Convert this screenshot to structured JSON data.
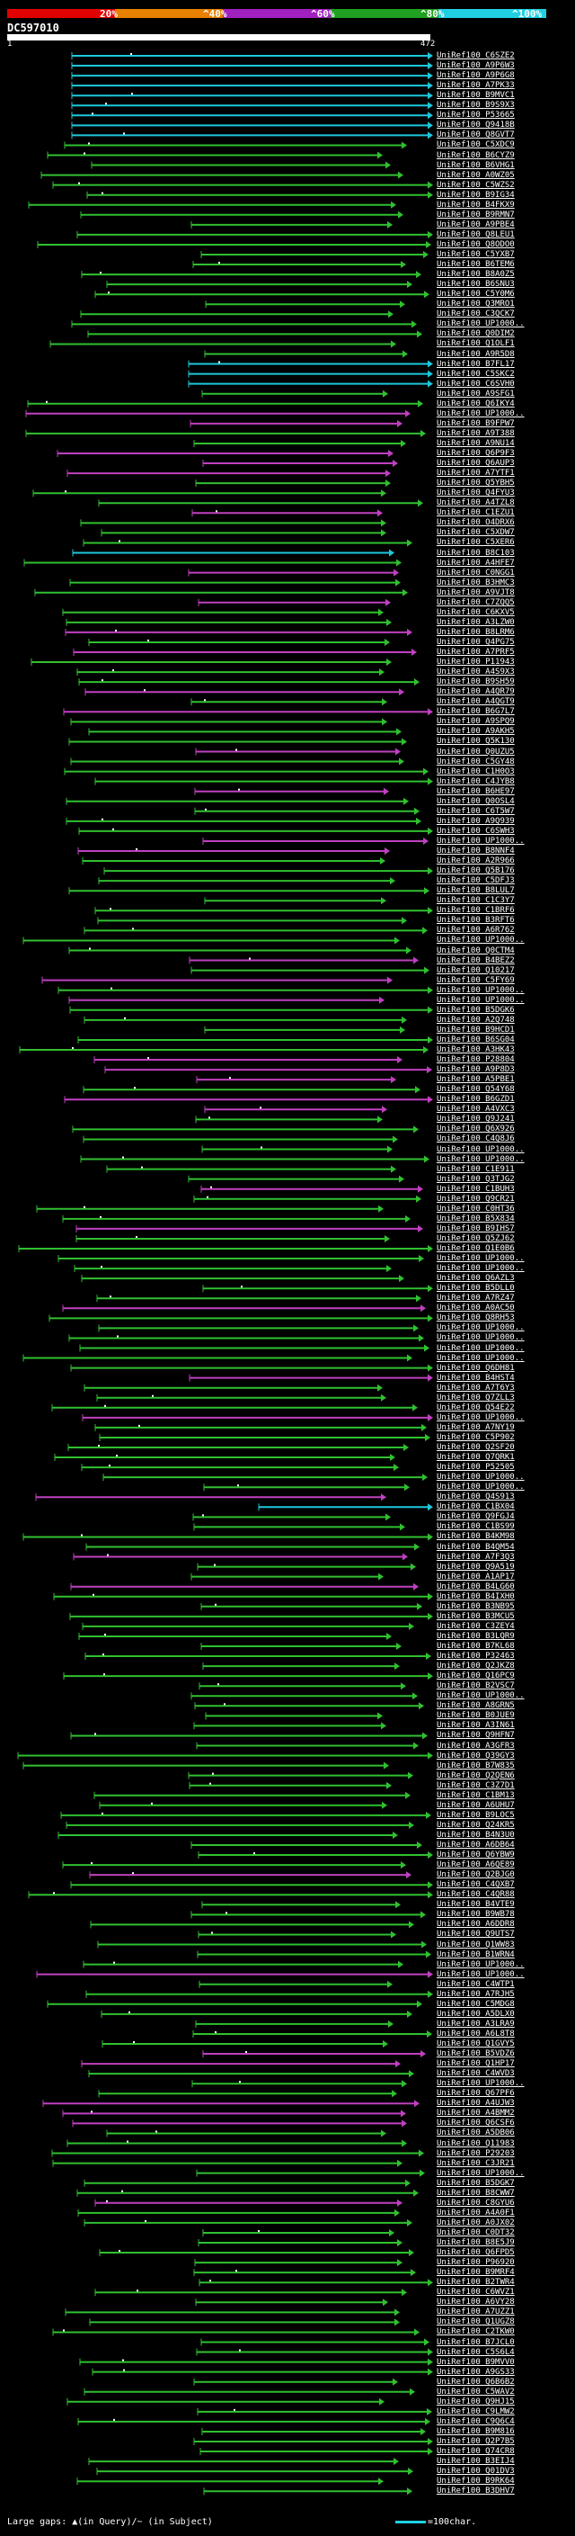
{
  "scale": {
    "labels": [
      "20%",
      "^40%",
      "^60%",
      "^80%",
      "^100%"
    ],
    "colors": [
      "#e00000",
      "#e88000",
      "#a020c0",
      "#20a020",
      "#20d0e0"
    ]
  },
  "query": {
    "id": "DC597010",
    "start": "1",
    "end": "472"
  },
  "legend": {
    "text": "Large gaps: ▲(in Query)/~ (in Subject)",
    "scale_text": "=100char.",
    "scale_color": "#20d0e0"
  },
  "identity_colors": {
    "cyan": "#1ec8dc",
    "magenta": "#c040c0",
    "green": "#30c030",
    "white": "#ffffff"
  },
  "hit_labels": [
    "UniRef100_C6SZE2",
    "UniRef100_A9P6W3",
    "UniRef100_A9P6G8",
    "UniRef100_A7PK33",
    "UniRef100_B9MVC1",
    "UniRef100_B9S9X3",
    "UniRef100_P53665",
    "UniRef100_Q9418B",
    "UniRef100_Q8GVT7",
    "UniRef100_C5XDC9",
    "UniRef100_B6CYZ9",
    "UniRef100_B6VHG1",
    "UniRef100_A0WZ05",
    "UniRef100_C5WZS2",
    "UniRef100_B9IG34",
    "UniRef100_B4FKX9",
    "UniRef100_B9RMN7",
    "UniRef100_A9PBE4",
    "UniRef100_Q8LEU1",
    "UniRef100_Q8ODO0",
    "UniRef100_C5YXB7",
    "UniRef100_B6TEM6",
    "UniRef100_B8A0Z5",
    "UniRef100_B6SNU3",
    "UniRef100_C5Y0M6",
    "UniRef100_Q3MRO1",
    "UniRef100_C3QCK7",
    "UniRef100_UP1000..",
    "UniRef100_Q0DIM2",
    "UniRef100_Q1OLF1",
    "UniRef100_A9R5D8",
    "UniRef100_B7FL17",
    "UniRef100_C5SKC2",
    "UniRef100_C6SVH0",
    "UniRef100_A9SFG1",
    "UniRef100_Q6IKY4",
    "UniRef100_UP1000..",
    "UniRef100_B9FPW7",
    "UniRef100_A9T388",
    "UniRef100_A9NU14",
    "UniRef100_Q6P9F3",
    "UniRef100_Q6AUP3",
    "UniRef100_A7YTF1",
    "UniRef100_Q5YBH5",
    "UniRef100_Q4FYU3",
    "UniRef100_A4TZL8",
    "UniRef100_C1EZU1",
    "UniRef100_O4DRX6",
    "UniRef100_C5XDW7",
    "UniRef100_C5XER6",
    "UniRef100_B8C103",
    "UniRef100_A4HFE7",
    "UniRef100_C0NGG1",
    "UniRef100_B3HMC3",
    "UniRef100_A9VJT8",
    "UniRef100_C7ZQQ5",
    "UniRef100_C6KXV5",
    "UniRef100_A3LZW0",
    "UniRef100_B8LRM6",
    "UniRef100_Q4PG75",
    "UniRef100_A7PRF5",
    "UniRef100_P11943",
    "UniRef100_A4S9X3",
    "UniRef100_B9SH59",
    "UniRef100_A4QR79",
    "UniRef100_A4QGT9",
    "UniRef100_B6G7L7",
    "UniRef100_A9SPQ9",
    "UniRef100_A9AKH5",
    "UniRef100_Q5K130",
    "UniRef100_Q0UZU5",
    "UniRef100_C5GY48",
    "UniRef100_C1H0O3",
    "UniRef100_C4JYB8",
    "UniRef100_B6HE97",
    "UniRef100_Q0OSL4",
    "UniRef100_C6T5W7",
    "UniRef100_A9Q939",
    "UniRef100_C6SWH3",
    "UniRef100_UP1000..",
    "UniRef100_B8NNF4",
    "UniRef100_A2R966",
    "UniRef100_Q5B176",
    "UniRef100_C5DFJ3",
    "UniRef100_B8LUL7",
    "UniRef100_C1C3Y7",
    "UniRef100_C1BRF6",
    "UniRef100_B3RFT6",
    "UniRef100_A6R762",
    "UniRef100_UP1000..",
    "UniRef100_Q0CTM4",
    "UniRef100_B4BEZ2",
    "UniRef100_Q10217",
    "UniRef100_C5FY69",
    "UniRef100_UP1000..",
    "UniRef100_UP1000..",
    "UniRef100_B5DGK6",
    "UniRef100_A2Q748",
    "UniRef100_B9HCD1",
    "UniRef100_B6SG04",
    "UniRef100_A3HK43",
    "UniRef100_P28804",
    "UniRef100_A9P8D3",
    "UniRef100_A5PBE1",
    "UniRef100_Q54Y68",
    "UniRef100_B6GZD1",
    "UniRef100_A4VXC3",
    "UniRef100_Q9J241",
    "UniRef100_Q6X926",
    "UniRef100_C4Q8J6",
    "UniRef100_UP1000..",
    "UniRef100_UP1000..",
    "UniRef100_C1E911",
    "UniRef100_Q3TJG2",
    "UniRef100_C1BUH3",
    "UniRef100_Q9CR21",
    "UniRef100_C0HT36",
    "UniRef100_B5X834",
    "UniRef100_B9IHS7",
    "UniRef100_Q5ZJ62",
    "UniRef100_Q1E0B6",
    "UniRef100_UP1000..",
    "UniRef100_UP1000..",
    "UniRef100_Q6AZL3",
    "UniRef100_B5DLL0",
    "UniRef100_A7RZ47",
    "UniRef100_A0AC50",
    "UniRef100_Q8RH53",
    "UniRef100_UP1000..",
    "UniRef100_UP1000..",
    "UniRef100_UP1000..",
    "UniRef100_UP1000..",
    "UniRef100_Q6DH81",
    "UniRef100_B4HST4",
    "UniRef100_A7T6Y3",
    "UniRef100_Q7ZLL3",
    "UniRef100_Q54E22",
    "UniRef100_UP1000..",
    "UniRef100_A7NY19",
    "UniRef100_C5P902",
    "UniRef100_Q2SF20",
    "UniRef100_Q7QRK1",
    "UniRef100_P52505",
    "UniRef100_UP1000..",
    "UniRef100_UP1000..",
    "UniRef100_Q4S913",
    "UniRef100_C1BX04",
    "UniRef100_Q9FGJ4",
    "UniRef100_C1BS99",
    "UniRef100_B4KM98",
    "UniRef100_B4QM54",
    "UniRef100_A7F3Q3",
    "UniRef100_Q9A519",
    "UniRef100_A1AP17",
    "UniRef100_B4LG60",
    "UniRef100_B4IXH0",
    "UniRef100_B3NB95",
    "UniRef100_B3MCU5",
    "UniRef100_C3ZEY4",
    "UniRef100_B3LQR9",
    "UniRef100_B7KL68",
    "UniRef100_P32463",
    "UniRef100_Q2JKZ8",
    "UniRef100_Q16PC9",
    "UniRef100_B2VSC7",
    "UniRef100_UP1000..",
    "UniRef100_A8GRN5",
    "UniRef100_B0JUE9",
    "UniRef100_A3IN61",
    "UniRef100_Q9HFN7",
    "UniRef100_A3GFR3",
    "UniRef100_Q39GY3",
    "UniRef100_B7W835",
    "UniRef100_Q2QEN6",
    "UniRef100_C3Z7D1",
    "UniRef100_C1BM13",
    "UniRef100_A6UHU7",
    "UniRef100_B9LOC5",
    "UniRef100_Q24KR5",
    "UniRef100_B4N3U0",
    "UniRef100_A6DB64",
    "UniRef100_Q6YBW9",
    "UniRef100_A6QE89",
    "UniRef100_Q2BJG0",
    "UniRef100_C4QXB7",
    "UniRef100_C4QR88",
    "UniRef100_B4VTE9",
    "UniRef100_B9WB78",
    "UniRef100_A6DDR8",
    "UniRef100_Q9UTS7",
    "UniRef100_Q1WW83",
    "UniRef100_B1WRN4",
    "UniRef100_UP1000..",
    "UniRef100_UP1000..",
    "UniRef100_C4WTP1",
    "UniRef100_A7RJH5",
    "UniRef100_C5MDG8",
    "UniRef100_A5DLX0",
    "UniRef100_A3LRA9",
    "UniRef100_A6L8T8",
    "UniRef100_Q1GVY5",
    "UniRef100_B5VDZ6",
    "UniRef100_Q1HP17",
    "UniRef100_C4WVD3",
    "UniRef100_UP1000..",
    "UniRef100_Q67PF6",
    "UniRef100_A4UJW3",
    "UniRef100_A4BMM2",
    "UniRef100_Q6CSF6",
    "UniRef100_A5DB06",
    "UniRef100_Q11983",
    "UniRef100_P29203",
    "UniRef100_C3JR21",
    "UniRef100_UP1000..",
    "UniRef100_B5DGK7",
    "UniRef100_B8CWW7",
    "UniRef100_C8GYU6",
    "UniRef100_A4A0F1",
    "UniRef100_A0JX02",
    "UniRef100_C0DT32",
    "UniRef100_B8E5J9",
    "UniRef100_Q6FPD5",
    "UniRef100_P96920",
    "UniRef100_B9MRF4",
    "UniRef100_B2TWR4",
    "UniRef100_C6WVZ1",
    "UniRef100_A6VY28",
    "UniRef100_A7UZZ1",
    "UniRef100_Q1UGZ8",
    "UniRef100_C2TKW0",
    "UniRef100_B7JCL0",
    "UniRef100_C5S6L4",
    "UniRef100_B9MVV0",
    "UniRef100_A9GS33",
    "UniRef100_Q6B6B2",
    "UniRef100_C5WAV2",
    "UniRef100_Q9HJ15",
    "UniRef100_C9LMW2",
    "UniRef100_C9Q6C4",
    "UniRef100_B9M816",
    "UniRef100_Q2P7B5",
    "UniRef100_Q74CR8",
    "UniRef100_B3EIJ4",
    "UniRef100_Q01DV3",
    "UniRef100_B9RK64",
    "UniRef100_B3DHV7"
  ]
}
